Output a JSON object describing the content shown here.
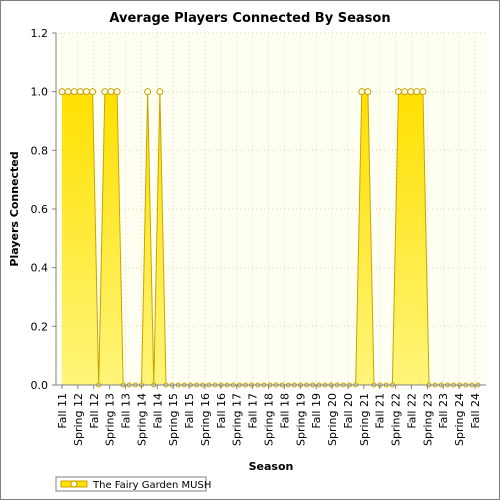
{
  "chart_data": {
    "type": "area",
    "title": "Average Players Connected By Season",
    "xlabel": "Season",
    "ylabel": "Players Connected",
    "ylim": [
      0,
      1.2
    ],
    "yticks": [
      "0.0",
      "0.2",
      "0.4",
      "0.6",
      "0.8",
      "1.0",
      "1.2"
    ],
    "grid": true,
    "legend_position": "bottom-left",
    "x_tick_labels": [
      "Fall 11",
      "Spring 12",
      "Fall 12",
      "Spring 13",
      "Fall 13",
      "Spring 14",
      "Fall 14",
      "Spring 15",
      "Fall 15",
      "Spring 16",
      "Fall 16",
      "Spring 17",
      "Fall 17",
      "Spring 18",
      "Fall 18",
      "Spring 19",
      "Fall 19",
      "Spring 20",
      "Fall 20",
      "Spring 21",
      "Fall 21",
      "Spring 22",
      "Fall 22",
      "Spring 23",
      "Fall 23",
      "Spring 24",
      "Fall 24"
    ],
    "series": [
      {
        "name": "The Fairy Garden MUSH",
        "color_fill_top": "#ffe000",
        "color_fill_bottom": "#fff57a",
        "color_line": "#c9a400",
        "marker_color": "#c8a000",
        "values": [
          1,
          1,
          1,
          1,
          1,
          1,
          0,
          1,
          1,
          1,
          0,
          0,
          0,
          0,
          1,
          0,
          1,
          0,
          0,
          0,
          0,
          0,
          0,
          0,
          0,
          0,
          0,
          0,
          0,
          0,
          0,
          0,
          0,
          0,
          0,
          0,
          0,
          0,
          0,
          0,
          0,
          0,
          0,
          0,
          0,
          0,
          0,
          0,
          0,
          1,
          1,
          0,
          0,
          0,
          0,
          1,
          1,
          1,
          1,
          1,
          0,
          0,
          0,
          0,
          0,
          0,
          0,
          0,
          0
        ]
      }
    ]
  },
  "colors": {
    "plot_background": "#fffff2",
    "grid": "#dcdcb8",
    "axis": "#808080"
  }
}
